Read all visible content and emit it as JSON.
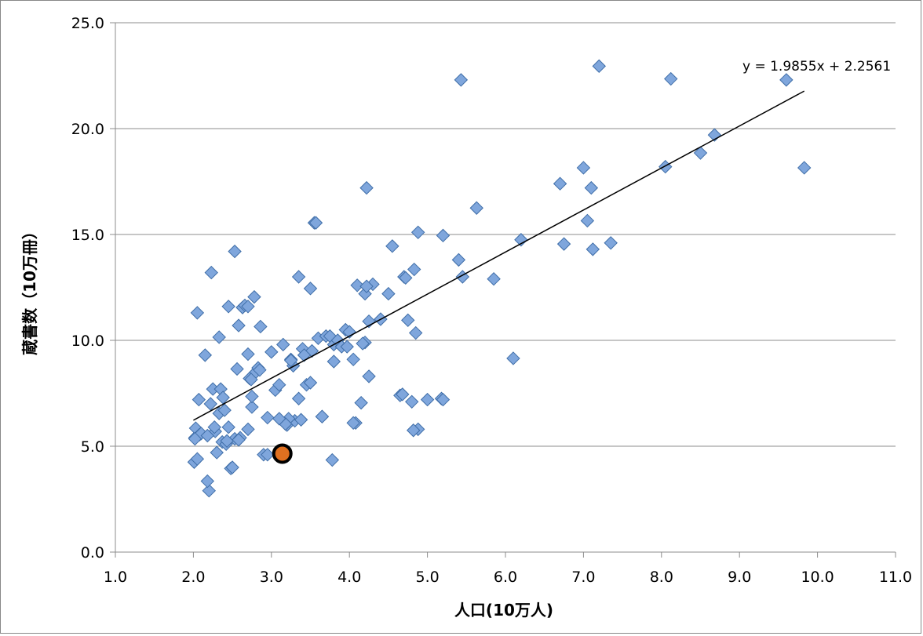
{
  "chart_data": {
    "type": "scatter",
    "title": "",
    "xlabel": "人口(10万人)",
    "ylabel": "蔵書数（10万冊）",
    "xlim": [
      1.0,
      11.0
    ],
    "ylim": [
      0.0,
      25.0
    ],
    "x_ticks": [
      "1.0",
      "2.0",
      "3.0",
      "4.0",
      "5.0",
      "6.0",
      "7.0",
      "8.0",
      "9.0",
      "10.0",
      "11.0"
    ],
    "y_ticks": [
      "0.0",
      "5.0",
      "10.0",
      "15.0",
      "20.0",
      "25.0"
    ],
    "grid": "horizontal",
    "legend": "none",
    "colors": {
      "points": "#7fa6dc",
      "points_edge": "#3f6ea8",
      "highlight": "#e07020",
      "highlight_edge": "#000000",
      "trendline": "#000000",
      "grid": "#8c8c8c"
    },
    "series": [
      {
        "marker": "diamond",
        "x": [
          2.02,
          2.03,
          2.01,
          2.05,
          2.07,
          2.08,
          2.1,
          2.15,
          2.2,
          2.22,
          2.25,
          2.28,
          2.3,
          2.33,
          2.35,
          2.37,
          2.38,
          2.4,
          2.42,
          2.45,
          2.48,
          2.5,
          2.53,
          2.56,
          2.58,
          2.6,
          2.63,
          2.66,
          2.7,
          2.72,
          2.75,
          2.8,
          2.83,
          2.86,
          2.9,
          2.95,
          3.0,
          3.05,
          3.1,
          3.15,
          3.2,
          3.25,
          3.3,
          3.35,
          3.4,
          3.45,
          3.5,
          3.55,
          3.6,
          3.65,
          3.7,
          3.75,
          3.8,
          3.85,
          3.9,
          3.95,
          4.0,
          4.05,
          4.1,
          4.15,
          4.2,
          4.25,
          4.3,
          4.4,
          4.5,
          4.55,
          4.65,
          4.7,
          4.75,
          4.8,
          4.83,
          4.85,
          4.88,
          5.0,
          5.18,
          5.2,
          5.4,
          5.45,
          5.63,
          5.85,
          6.1,
          6.2,
          6.7,
          6.75,
          7.0,
          7.05,
          7.1,
          7.12,
          7.2,
          7.35,
          8.05,
          8.12,
          8.5,
          8.68,
          9.6,
          9.83,
          5.43,
          4.22,
          3.57,
          2.53,
          2.23,
          2.05,
          2.18,
          2.7,
          2.78,
          3.35,
          3.5,
          4.08,
          4.25,
          4.72,
          4.88,
          5.2,
          2.95,
          3.22,
          3.28,
          3.52,
          2.02,
          2.18,
          2.27,
          2.43,
          2.58,
          2.75,
          3.18,
          3.38,
          3.65,
          3.78,
          4.2,
          2.33,
          2.7,
          3.1,
          3.25,
          3.42,
          3.8,
          4.05,
          4.17,
          4.68,
          2.45,
          2.85,
          2.74,
          4.22,
          4.82,
          3.97
        ],
        "y": [
          5.4,
          5.85,
          4.25,
          4.4,
          7.2,
          5.55,
          5.6,
          9.3,
          2.9,
          7.0,
          7.7,
          5.7,
          4.7,
          6.55,
          7.7,
          5.2,
          7.3,
          6.7,
          5.1,
          5.9,
          3.95,
          4.0,
          5.35,
          8.65,
          10.7,
          5.4,
          11.55,
          11.65,
          5.8,
          8.2,
          6.85,
          8.5,
          8.7,
          10.65,
          4.6,
          6.35,
          9.45,
          7.65,
          7.9,
          9.8,
          6.0,
          9.1,
          6.2,
          7.25,
          9.6,
          7.9,
          8.0,
          15.55,
          10.1,
          6.4,
          10.2,
          10.2,
          9.8,
          10.0,
          9.7,
          10.5,
          10.4,
          9.1,
          12.6,
          7.05,
          12.2,
          10.9,
          12.65,
          11.0,
          12.2,
          14.45,
          7.4,
          13.0,
          10.95,
          7.1,
          13.35,
          10.35,
          15.1,
          7.2,
          7.25,
          14.95,
          13.8,
          13.0,
          16.25,
          12.9,
          9.15,
          14.75,
          17.4,
          14.55,
          18.15,
          15.65,
          17.2,
          14.3,
          22.95,
          14.6,
          18.2,
          22.35,
          18.85,
          19.7,
          22.3,
          18.15,
          22.3,
          17.2,
          15.55,
          14.2,
          13.2,
          11.3,
          3.35,
          9.35,
          12.05,
          13.0,
          12.45,
          6.1,
          8.3,
          12.95,
          5.8,
          7.2,
          4.6,
          6.3,
          8.8,
          9.5,
          5.35,
          5.5,
          5.9,
          5.25,
          5.3,
          7.35,
          6.05,
          6.25,
          6.4,
          4.35,
          9.9,
          10.15,
          11.6,
          6.3,
          9.05,
          9.3,
          9.0,
          6.1,
          9.85,
          7.45,
          11.6,
          8.6,
          8.15,
          12.55,
          5.75,
          9.7
        ]
      },
      {
        "marker": "circle",
        "highlight": true,
        "x": [
          3.14
        ],
        "y": [
          4.65
        ]
      }
    ],
    "trendline": {
      "slope": 1.9855,
      "intercept": 2.2561,
      "x_range": [
        2.0,
        9.83
      ],
      "equation": "y = 1.9855x + 2.2561"
    }
  }
}
